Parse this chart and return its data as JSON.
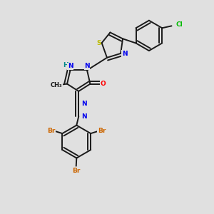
{
  "bg_color": "#e0e0e0",
  "bond_color": "#1a1a1a",
  "bond_width": 1.4,
  "atom_colors": {
    "N": "#0000ee",
    "O": "#ff0000",
    "S": "#bbbb00",
    "Br": "#cc6600",
    "Cl": "#00bb00",
    "H": "#008888",
    "C": "#1a1a1a"
  },
  "fs": 6.5
}
